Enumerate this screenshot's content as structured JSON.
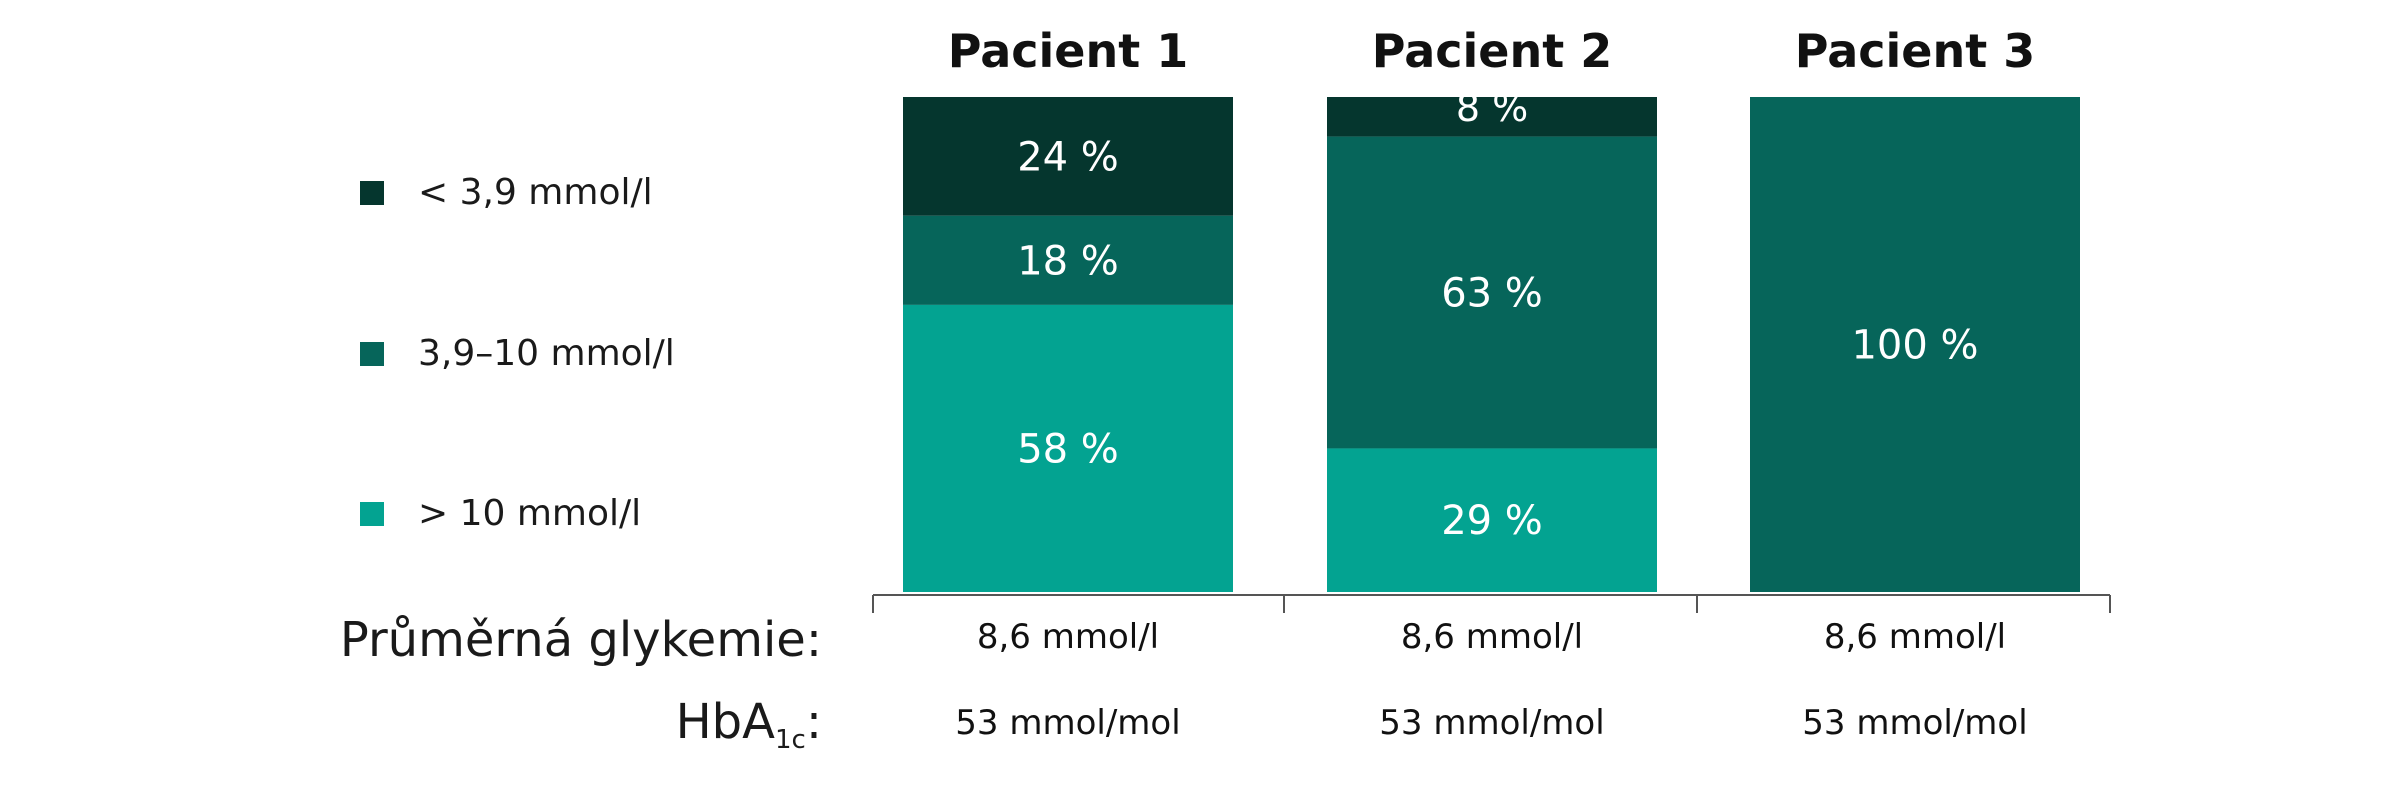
{
  "chart_data": {
    "type": "bar",
    "stacked": true,
    "categories": [
      "Pacient 1",
      "Pacient 2",
      "Pacient 3"
    ],
    "series": [
      {
        "name": "< 3,9 mmol/l",
        "color": "#05362e",
        "values": [
          24,
          8,
          0
        ]
      },
      {
        "name": "3,9–10 mmol/l",
        "color": "#06655a",
        "values": [
          18,
          63,
          100
        ]
      },
      {
        "name": "> 10 mmol/l",
        "color": "#03a391",
        "values": [
          58,
          29,
          0
        ]
      }
    ],
    "value_labels": [
      [
        "24 %",
        "8 %",
        ""
      ],
      [
        "18 %",
        "63 %",
        "100 %"
      ],
      [
        "58 %",
        "29 %",
        ""
      ]
    ],
    "ylim": [
      0,
      100
    ],
    "legend_position": "left",
    "grid": false
  },
  "rows": {
    "glycemia_label": "Průměrná glykemie:",
    "glycemia_values": [
      "8,6 mmol/l",
      "8,6 mmol/l",
      "8,6 mmol/l"
    ],
    "hba1c_label_main": "HbA",
    "hba1c_label_sub": "1c",
    "hba1c_label_tail": ":",
    "hba1c_values": [
      "53 mmol/mol",
      "53 mmol/mol",
      "53 mmol/mol"
    ]
  }
}
